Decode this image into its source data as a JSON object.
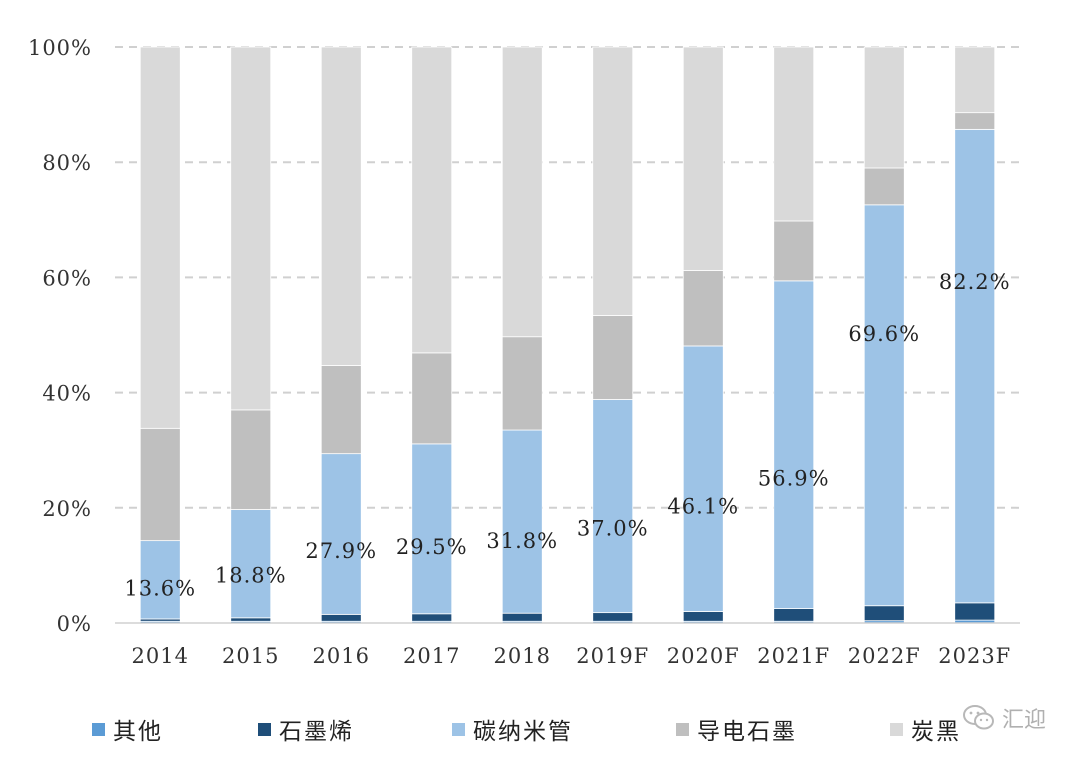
{
  "chart_data": {
    "type": "bar",
    "stacked": true,
    "categories": [
      "2014",
      "2015",
      "2016",
      "2017",
      "2018",
      "2019F",
      "2020F",
      "2021F",
      "2022F",
      "2023F"
    ],
    "series": [
      {
        "name": "其他",
        "color": "#5b9bd5",
        "values": [
          0.3,
          0.3,
          0.3,
          0.3,
          0.3,
          0.3,
          0.3,
          0.3,
          0.4,
          0.5
        ]
      },
      {
        "name": "石墨烯",
        "color": "#1f4e79",
        "values": [
          0.4,
          0.6,
          1.2,
          1.3,
          1.4,
          1.5,
          1.7,
          2.2,
          2.6,
          3.0
        ]
      },
      {
        "name": "碳纳米管",
        "color": "#9dc3e6",
        "values": [
          13.6,
          18.8,
          27.9,
          29.5,
          31.8,
          37.0,
          46.1,
          56.9,
          69.6,
          82.2
        ]
      },
      {
        "name": "导电石墨",
        "color": "#bfbfbf",
        "values": [
          19.5,
          17.3,
          15.3,
          15.8,
          16.2,
          14.6,
          13.1,
          10.4,
          6.4,
          2.9
        ]
      },
      {
        "name": "炭黑",
        "color": "#d9d9d9",
        "values": [
          66.2,
          63.0,
          55.3,
          53.1,
          50.3,
          46.6,
          38.8,
          30.2,
          21.0,
          11.4
        ]
      }
    ],
    "data_labels": [
      "13.6%",
      "18.8%",
      "27.9%",
      "29.5%",
      "31.8%",
      "37.0%",
      "46.1%",
      "56.9%",
      "69.6%",
      "82.2%"
    ],
    "ylim": [
      0,
      100
    ],
    "yticks": [
      "0%",
      "20%",
      "40%",
      "60%",
      "80%",
      "100%"
    ],
    "grid": true,
    "legend_position": "bottom"
  },
  "watermark": {
    "icon": "wechat-icon",
    "text": "汇迎"
  }
}
